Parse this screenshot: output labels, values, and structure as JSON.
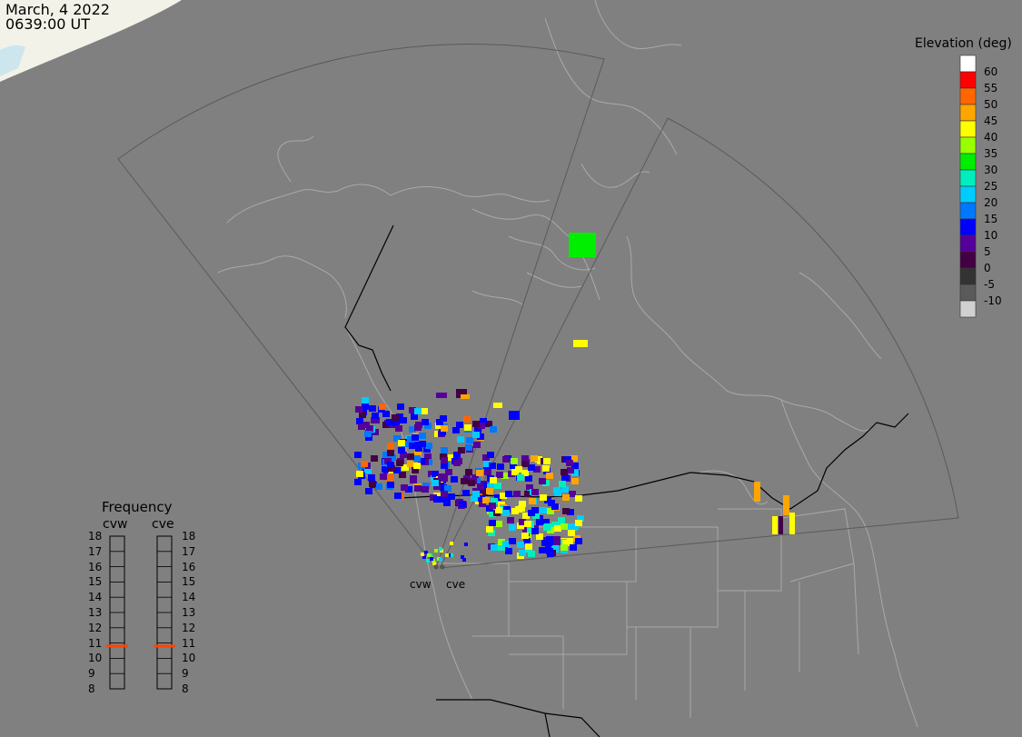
{
  "header": {
    "date": "March, 4 2022",
    "time": "0639:00 UT"
  },
  "legend": {
    "title": "Elevation (deg)",
    "entries": [
      {
        "label": "60",
        "color": "#ffffff"
      },
      {
        "label": "55",
        "color": "#ff0000"
      },
      {
        "label": "50",
        "color": "#ff6600"
      },
      {
        "label": "45",
        "color": "#ffa500"
      },
      {
        "label": "40",
        "color": "#ffff00"
      },
      {
        "label": "35",
        "color": "#99ff00"
      },
      {
        "label": "30",
        "color": "#00ee00"
      },
      {
        "label": "25",
        "color": "#00eebb"
      },
      {
        "label": "20",
        "color": "#00ccff"
      },
      {
        "label": "15",
        "color": "#0077ff"
      },
      {
        "label": "10",
        "color": "#0000ff"
      },
      {
        "label": "5",
        "color": "#550099"
      },
      {
        "label": "0",
        "color": "#440044"
      },
      {
        "label": "-5",
        "color": "#333333"
      },
      {
        "label": "-10",
        "color": "#5a5a5a"
      },
      {
        "label": "",
        "color": "#d0d0d0"
      }
    ]
  },
  "frequency": {
    "title": "Frequency",
    "radars": [
      {
        "name": "cvw",
        "value": 10.8
      },
      {
        "name": "cve",
        "value": 10.8
      }
    ],
    "ticks": [
      "18",
      "17",
      "16",
      "15",
      "14",
      "13",
      "12",
      "11",
      "10",
      "9",
      "8"
    ],
    "marker_color": "#ff4400"
  },
  "sites": [
    {
      "name": "cvw"
    },
    {
      "name": "cve"
    }
  ],
  "colors": {
    "background": "#808080",
    "coastline": "#a9a9a9",
    "border": "#000000",
    "fov": "#5a5a5a"
  }
}
